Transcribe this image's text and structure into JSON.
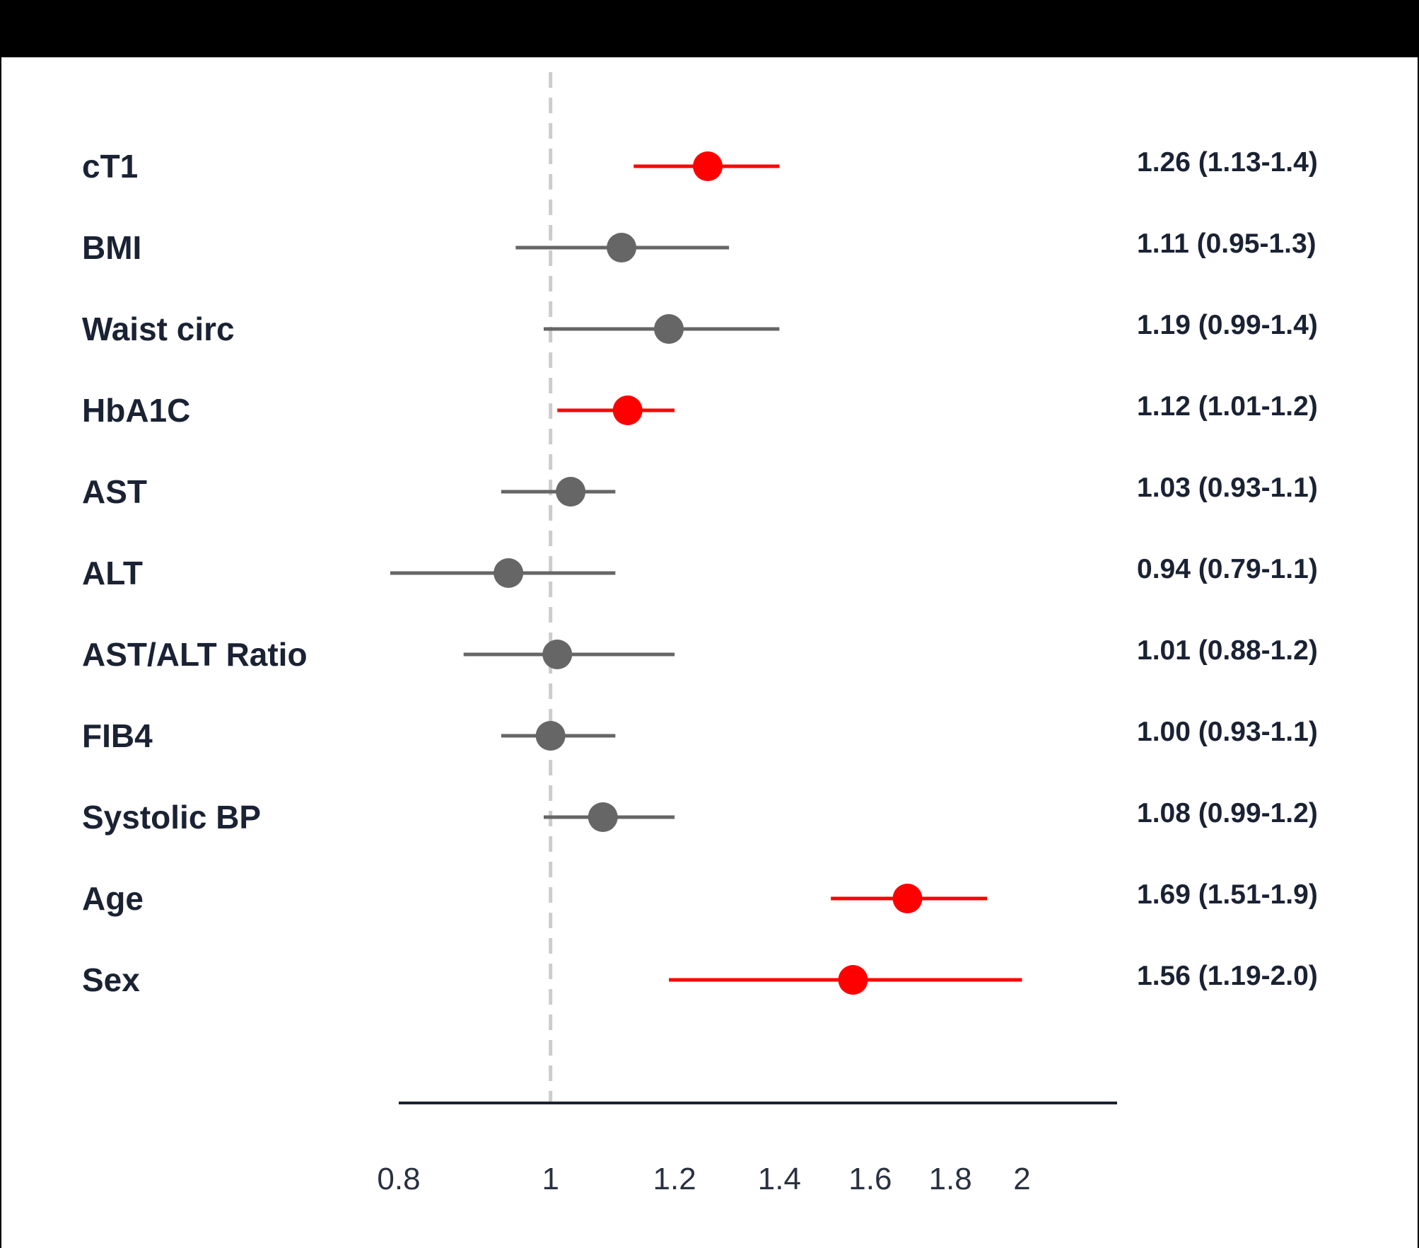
{
  "chart_data": {
    "type": "scatter",
    "subtype": "forest",
    "title": "",
    "xlabel": "",
    "ylabel": "",
    "x_scale": "log",
    "xlim": [
      0.8,
      2.3
    ],
    "reference_line": 1,
    "grid": false,
    "legend": "none",
    "x_ticks": [
      {
        "value": 0.8,
        "label": "0.8"
      },
      {
        "value": 1,
        "label": "1"
      },
      {
        "value": 1.2,
        "label": "1.2"
      },
      {
        "value": 1.4,
        "label": "1.4"
      },
      {
        "value": 1.6,
        "label": "1.6"
      },
      {
        "value": 1.8,
        "label": "1.8"
      },
      {
        "value": 2,
        "label": "2"
      }
    ],
    "colors": {
      "significant": "#ff0000",
      "non_significant": "#666666",
      "axis": "#1a2233",
      "reference": "#cccccc"
    },
    "rows": [
      {
        "label": "cT1",
        "estimate": 1.26,
        "lower": 1.13,
        "upper": 1.4,
        "significant": true,
        "text": "1.26 (1.13-1.4)"
      },
      {
        "label": "BMI",
        "estimate": 1.11,
        "lower": 0.95,
        "upper": 1.3,
        "significant": false,
        "text": "1.11 (0.95-1.3)"
      },
      {
        "label": "Waist circ",
        "estimate": 1.19,
        "lower": 0.99,
        "upper": 1.4,
        "significant": false,
        "text": "1.19 (0.99-1.4)"
      },
      {
        "label": "HbA1C",
        "estimate": 1.12,
        "lower": 1.01,
        "upper": 1.2,
        "significant": true,
        "text": "1.12 (1.01-1.2)"
      },
      {
        "label": "AST",
        "estimate": 1.03,
        "lower": 0.93,
        "upper": 1.1,
        "significant": false,
        "text": "1.03 (0.93-1.1)"
      },
      {
        "label": "ALT",
        "estimate": 0.94,
        "lower": 0.79,
        "upper": 1.1,
        "significant": false,
        "text": "0.94 (0.79-1.1)"
      },
      {
        "label": "AST/ALT Ratio",
        "estimate": 1.01,
        "lower": 0.88,
        "upper": 1.2,
        "significant": false,
        "text": "1.01 (0.88-1.2)"
      },
      {
        "label": "FIB4",
        "estimate": 1.0,
        "lower": 0.93,
        "upper": 1.1,
        "significant": false,
        "text": "1.00 (0.93-1.1)"
      },
      {
        "label": "Systolic BP",
        "estimate": 1.08,
        "lower": 0.99,
        "upper": 1.2,
        "significant": false,
        "text": "1.08 (0.99-1.2)"
      },
      {
        "label": "Age",
        "estimate": 1.69,
        "lower": 1.51,
        "upper": 1.9,
        "significant": true,
        "text": "1.69 (1.51-1.9)"
      },
      {
        "label": "Sex",
        "estimate": 1.56,
        "lower": 1.19,
        "upper": 2.0,
        "significant": true,
        "text": "1.56 (1.19-2.0)"
      }
    ]
  }
}
